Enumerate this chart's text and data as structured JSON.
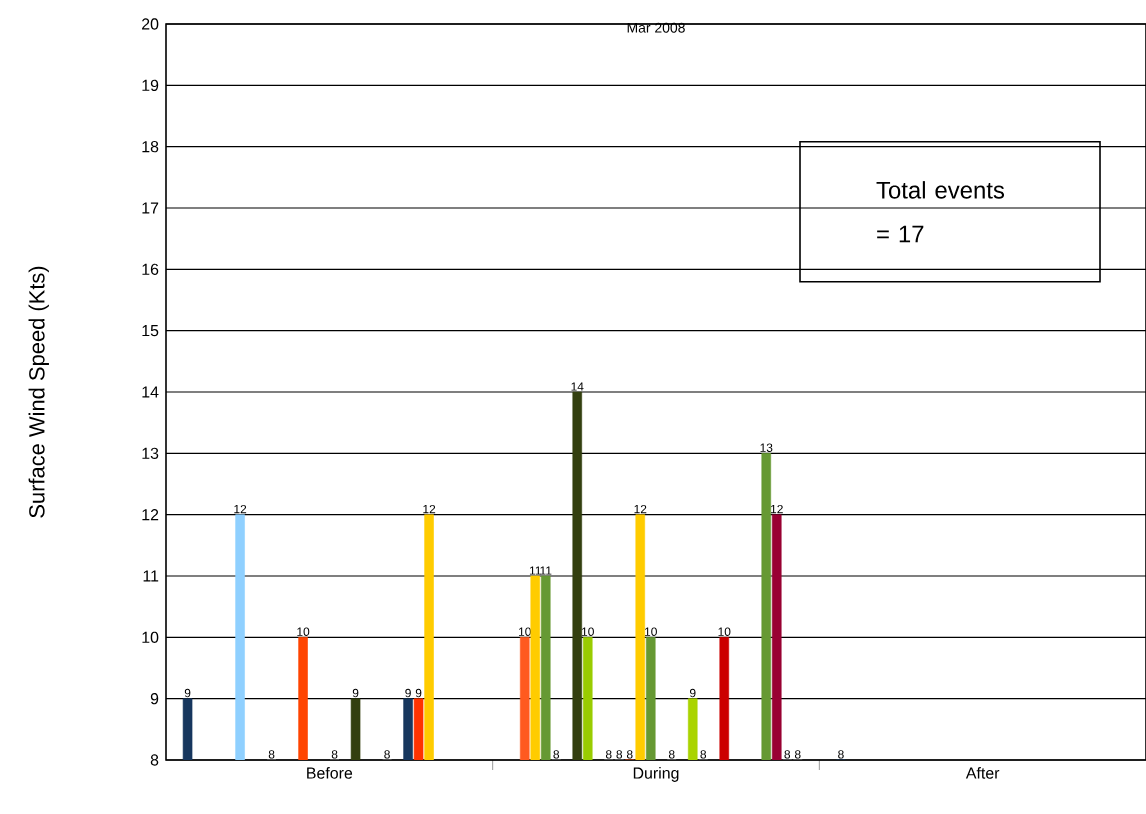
{
  "chart_data": {
    "type": "bar",
    "title": "Mar 2008",
    "ylabel": "Surface Wind Speed (Kts)",
    "categories": [
      "Before",
      "During",
      "After"
    ],
    "series": [
      {
        "color": "#17375e",
        "values": [
          9,
          null,
          8
        ]
      },
      {
        "color": "#ff5a1f",
        "values": [
          null,
          10,
          null
        ]
      },
      {
        "color": "#ffcc00",
        "values": [
          null,
          11,
          null
        ]
      },
      {
        "color": "#669933",
        "values": [
          null,
          11,
          null
        ]
      },
      {
        "color": "#808080",
        "values": [
          null,
          8,
          null
        ]
      },
      {
        "color": "#8fd0ff",
        "values": [
          12,
          null,
          null
        ]
      },
      {
        "color": "#333f0f",
        "values": [
          null,
          14,
          null
        ]
      },
      {
        "color": "#99cc00",
        "values": [
          null,
          10,
          null
        ]
      },
      {
        "color": "#808080",
        "values": [
          8,
          null,
          null
        ]
      },
      {
        "color": "#808080",
        "values": [
          null,
          8,
          null
        ]
      },
      {
        "color": "#808080",
        "values": [
          null,
          8,
          null
        ]
      },
      {
        "color": "#ff4500",
        "values": [
          10,
          8,
          null
        ]
      },
      {
        "color": "#ffcc00",
        "values": [
          null,
          12,
          null
        ]
      },
      {
        "color": "#669933",
        "values": [
          null,
          10,
          null
        ]
      },
      {
        "color": "#808080",
        "values": [
          8,
          null,
          null
        ]
      },
      {
        "color": "#808080",
        "values": [
          null,
          8,
          null
        ]
      },
      {
        "color": "#333f0f",
        "values": [
          9,
          null,
          null
        ]
      },
      {
        "color": "#aad400",
        "values": [
          null,
          9,
          null
        ]
      },
      {
        "color": "#808080",
        "values": [
          null,
          8,
          null
        ]
      },
      {
        "color": "#808080",
        "values": [
          8,
          null,
          null
        ]
      },
      {
        "color": "#cc0000",
        "values": [
          null,
          10,
          null
        ]
      },
      {
        "color": "#17375e",
        "values": [
          9,
          null,
          null
        ]
      },
      {
        "color": "#ff3300",
        "values": [
          9,
          null,
          null
        ]
      },
      {
        "color": "#ffcc00",
        "values": [
          12,
          null,
          null
        ]
      },
      {
        "color": "#669933",
        "values": [
          null,
          13,
          null
        ]
      },
      {
        "color": "#990033",
        "values": [
          null,
          12,
          null
        ]
      },
      {
        "color": "#808080",
        "values": [
          null,
          8,
          null
        ]
      },
      {
        "color": "#808080",
        "values": [
          null,
          8,
          null
        ]
      }
    ],
    "ylim": [
      8,
      20
    ],
    "yticks": [
      8,
      9,
      10,
      11,
      12,
      13,
      14,
      15,
      16,
      17,
      18,
      19,
      20
    ],
    "grid": "y",
    "data_labels": true,
    "annotations": [
      "Total events = 17"
    ]
  }
}
